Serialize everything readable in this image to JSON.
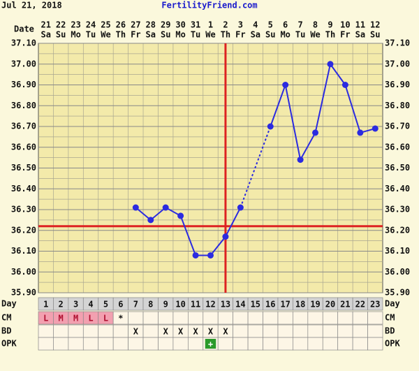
{
  "header": {
    "date": "Jul 21, 2018",
    "site": "FertilityFriend.com"
  },
  "chart_data": {
    "type": "line",
    "row_labels": {
      "date": "Date",
      "day": "Day",
      "cm": "CM",
      "bd": "BD",
      "opk": "OPK"
    },
    "categories": [
      "21",
      "22",
      "23",
      "24",
      "25",
      "26",
      "27",
      "28",
      "29",
      "30",
      "31",
      "1",
      "2",
      "3",
      "4",
      "5",
      "6",
      "7",
      "8",
      "9",
      "10",
      "11",
      "12"
    ],
    "weekdays": [
      "Sa",
      "Su",
      "Mo",
      "Tu",
      "We",
      "Th",
      "Fr",
      "Sa",
      "Su",
      "Mo",
      "Tu",
      "We",
      "Th",
      "Fr",
      "Sa",
      "Su",
      "Mo",
      "Tu",
      "We",
      "Th",
      "Fr",
      "Sa",
      "Su"
    ],
    "days": [
      1,
      2,
      3,
      4,
      5,
      6,
      7,
      8,
      9,
      10,
      11,
      12,
      13,
      14,
      15,
      16,
      17,
      18,
      19,
      20,
      21,
      22,
      23
    ],
    "values": [
      null,
      null,
      null,
      null,
      null,
      null,
      36.31,
      36.25,
      36.31,
      36.27,
      36.08,
      36.08,
      36.17,
      36.31,
      null,
      36.7,
      36.9,
      36.54,
      36.67,
      37.0,
      36.9,
      36.67,
      36.69
    ],
    "color": "#2b2be0",
    "cm": [
      "L",
      "M",
      "M",
      "L",
      "L",
      "*",
      null,
      null,
      null,
      null,
      null,
      null,
      null,
      null,
      null,
      null,
      null,
      null,
      null,
      null,
      null,
      null,
      null
    ],
    "bd": [
      null,
      null,
      null,
      null,
      null,
      null,
      "X",
      null,
      "X",
      "X",
      "X",
      "X",
      "X",
      null,
      null,
      null,
      null,
      null,
      null,
      null,
      null,
      null,
      null
    ],
    "opk": [
      null,
      null,
      null,
      null,
      null,
      null,
      null,
      null,
      null,
      null,
      null,
      "+",
      null,
      null,
      null,
      null,
      null,
      null,
      null,
      null,
      null,
      null,
      null
    ],
    "coverline": 36.22,
    "ovulation_day": 13,
    "marker_color": "#dd2222",
    "ylim": [
      35.9,
      37.1
    ],
    "yticks": [
      {
        "value": 35.9,
        "label": "35.90"
      },
      {
        "value": 36.0,
        "label": "36.00"
      },
      {
        "value": 36.1,
        "label": "36.10"
      },
      {
        "value": 36.2,
        "label": "36.20"
      },
      {
        "value": 36.3,
        "label": "36.30"
      },
      {
        "value": 36.4,
        "label": "36.40"
      },
      {
        "value": 36.5,
        "label": "36.50"
      },
      {
        "value": 36.6,
        "label": "36.60"
      },
      {
        "value": 36.7,
        "label": "36.70"
      },
      {
        "value": 36.8,
        "label": "36.80"
      },
      {
        "value": 36.9,
        "label": "36.90"
      },
      {
        "value": 37.0,
        "label": "37.00"
      },
      {
        "value": 37.1,
        "label": "37.10"
      }
    ],
    "grid": true
  }
}
